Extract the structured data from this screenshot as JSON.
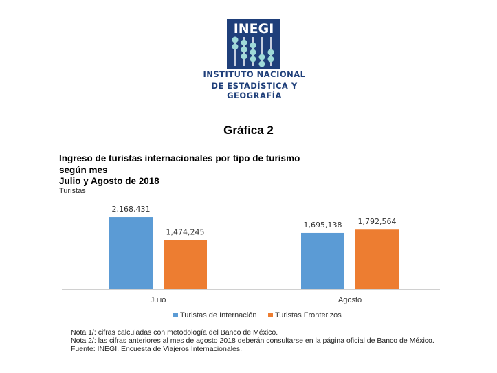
{
  "logo": {
    "acronym": "INEGI",
    "line1": "INSTITUTO NACIONAL",
    "line2": "DE ESTADÍSTICA Y GEOGRAFÍA",
    "color": "#1f3f7a"
  },
  "heading": "Gráfica 2",
  "chart_data": {
    "type": "bar",
    "title_lines": [
      "Ingreso de turistas internacionales por tipo de turismo",
      "según mes",
      "Julio y Agosto de 2018"
    ],
    "ylabel": "Turistas",
    "categories": [
      "Julio",
      "Agosto"
    ],
    "series": [
      {
        "name": "Turistas de Internación",
        "color": "#5b9bd5",
        "values": [
          2168431,
          1695138
        ],
        "labels": [
          "2,168,431",
          "1,695,138"
        ]
      },
      {
        "name": "Turistas Fronterizos",
        "color": "#ed7d31",
        "values": [
          1474245,
          1792564
        ],
        "labels": [
          "1,474,245",
          "1,792,564"
        ]
      }
    ],
    "ylim": [
      0,
      2500000
    ],
    "grid": false,
    "legend": "bottom"
  },
  "notes": [
    "Nota 1/: cifras calculadas  con metodología  del Banco de México.",
    "Nota 2/: las cifras anteriores al mes de agosto 2018 deberán consultarse en la página oficial de Banco de México.",
    "Fuente: INEGI. Encuesta de Viajeros Internacionales."
  ]
}
